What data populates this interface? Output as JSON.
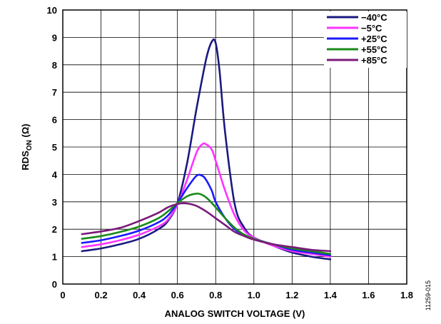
{
  "chart_data": {
    "type": "line",
    "title": "",
    "xlabel": "ANALOG SWITCH VOLTAGE (V)",
    "ylabel": {
      "main": "RDS",
      "sub": "ON",
      "unit": " (Ω)"
    },
    "xlim": [
      0,
      1.8
    ],
    "ylim": [
      0,
      10
    ],
    "x_ticks": [
      "0",
      "0.2",
      "0.4",
      "0.6",
      "0.8",
      "1.0",
      "1.2",
      "1.4",
      "1.6",
      "1.8"
    ],
    "y_ticks": [
      "0",
      "1",
      "2",
      "3",
      "4",
      "5",
      "6",
      "7",
      "8",
      "9",
      "10"
    ],
    "grid": true,
    "legend_position": "top-right",
    "figure_number": "11259-015",
    "series": [
      {
        "name": "−40°C",
        "color": "#1a1a80",
        "x": [
          0.1,
          0.2,
          0.3,
          0.4,
          0.5,
          0.55,
          0.6,
          0.65,
          0.7,
          0.75,
          0.78,
          0.8,
          0.82,
          0.85,
          0.9,
          0.95,
          1.0,
          1.1,
          1.2,
          1.3,
          1.4
        ],
        "y": [
          1.2,
          1.3,
          1.45,
          1.65,
          2.0,
          2.3,
          2.95,
          4.4,
          6.4,
          8.2,
          8.85,
          8.8,
          7.8,
          5.5,
          2.9,
          2.05,
          1.7,
          1.4,
          1.15,
          1.0,
          0.9
        ]
      },
      {
        "name": "−5°C",
        "color": "#ff33ff",
        "x": [
          0.1,
          0.2,
          0.3,
          0.4,
          0.5,
          0.55,
          0.6,
          0.65,
          0.7,
          0.73,
          0.75,
          0.78,
          0.8,
          0.85,
          0.9,
          0.95,
          1.0,
          1.1,
          1.2,
          1.3,
          1.4
        ],
        "y": [
          1.35,
          1.45,
          1.6,
          1.8,
          2.1,
          2.35,
          2.9,
          3.8,
          4.8,
          5.1,
          5.1,
          4.9,
          4.5,
          3.4,
          2.5,
          1.95,
          1.7,
          1.4,
          1.2,
          1.1,
          1.0
        ]
      },
      {
        "name": "+25°C",
        "color": "#1a1aff",
        "x": [
          0.1,
          0.2,
          0.3,
          0.4,
          0.5,
          0.55,
          0.6,
          0.65,
          0.7,
          0.73,
          0.75,
          0.78,
          0.8,
          0.85,
          0.9,
          0.95,
          1.0,
          1.1,
          1.2,
          1.3,
          1.4
        ],
        "y": [
          1.5,
          1.6,
          1.75,
          1.95,
          2.25,
          2.5,
          2.95,
          3.5,
          3.95,
          3.95,
          3.8,
          3.4,
          3.0,
          2.4,
          2.0,
          1.8,
          1.65,
          1.45,
          1.25,
          1.15,
          1.05
        ]
      },
      {
        "name": "+55°C",
        "color": "#1a8a1a",
        "x": [
          0.1,
          0.2,
          0.3,
          0.4,
          0.5,
          0.55,
          0.6,
          0.65,
          0.7,
          0.73,
          0.76,
          0.8,
          0.85,
          0.9,
          0.95,
          1.0,
          1.1,
          1.2,
          1.3,
          1.4
        ],
        "y": [
          1.65,
          1.75,
          1.9,
          2.1,
          2.4,
          2.65,
          2.95,
          3.2,
          3.3,
          3.25,
          3.1,
          2.8,
          2.4,
          2.05,
          1.8,
          1.65,
          1.45,
          1.3,
          1.2,
          1.1
        ]
      },
      {
        "name": "+85°C",
        "color": "#7a1a7a",
        "x": [
          0.1,
          0.2,
          0.3,
          0.4,
          0.5,
          0.55,
          0.6,
          0.63,
          0.66,
          0.7,
          0.75,
          0.8,
          0.85,
          0.9,
          0.95,
          1.0,
          1.1,
          1.2,
          1.3,
          1.4
        ],
        "y": [
          1.82,
          1.92,
          2.05,
          2.3,
          2.6,
          2.8,
          2.92,
          2.95,
          2.93,
          2.85,
          2.65,
          2.4,
          2.15,
          1.9,
          1.75,
          1.62,
          1.45,
          1.35,
          1.25,
          1.2
        ]
      }
    ]
  }
}
